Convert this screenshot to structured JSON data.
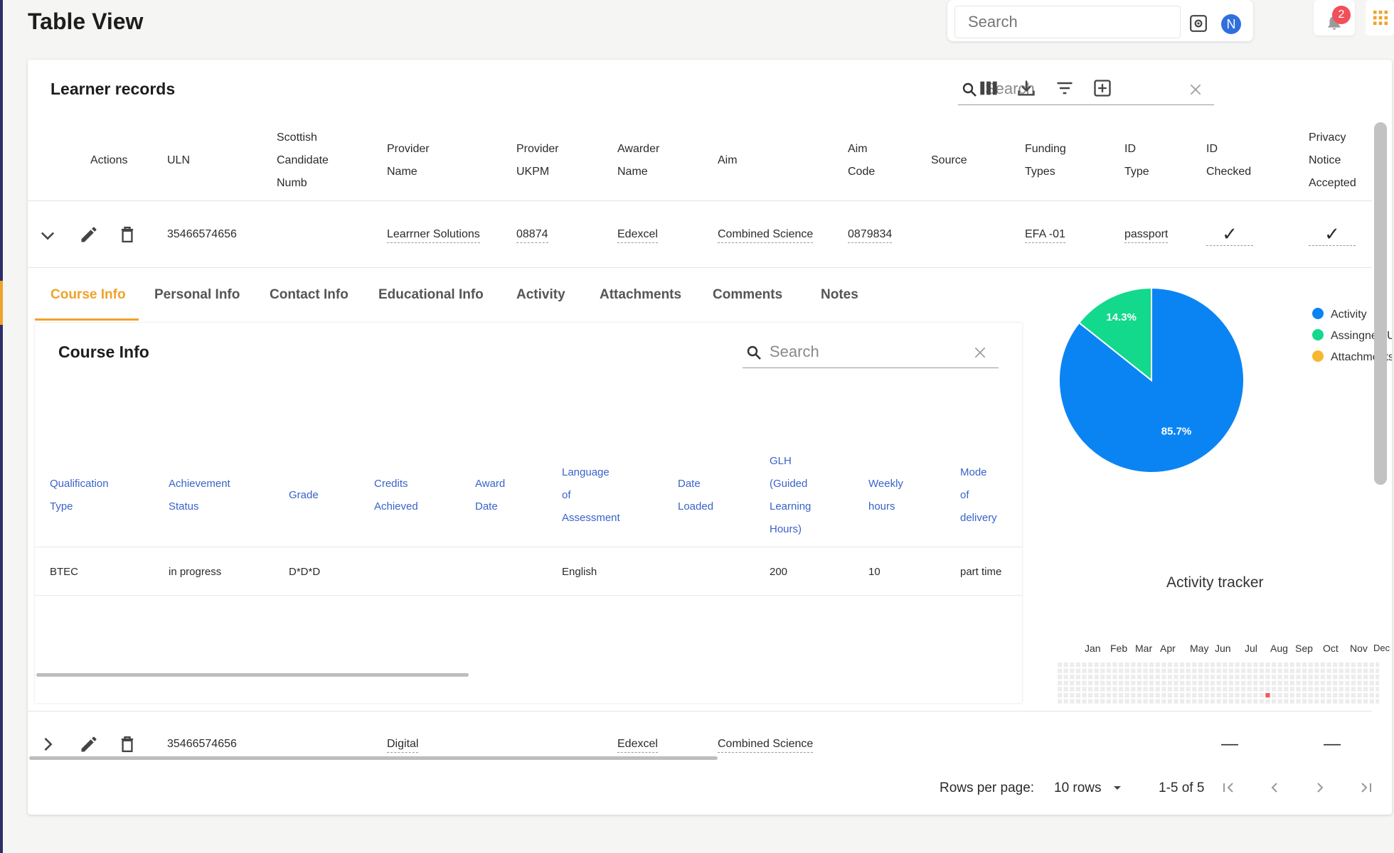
{
  "page": {
    "title": "Table View"
  },
  "topbar": {
    "search_placeholder": "Search",
    "avatar_initial": "N",
    "notification_count": "2"
  },
  "card": {
    "title": "Learner records",
    "search_placeholder": "Search",
    "columns": [
      [
        "Actions"
      ],
      [
        "ULN"
      ],
      [
        "Scottish",
        "Candidate",
        "Numb"
      ],
      [
        "Provider",
        "Name"
      ],
      [
        "Provider",
        "UKPM"
      ],
      [
        "Awarder",
        "Name"
      ],
      [
        "Aim"
      ],
      [
        "Aim",
        "Code"
      ],
      [
        "Source"
      ],
      [
        "Funding",
        "Types"
      ],
      [
        "ID",
        "Type"
      ],
      [
        "ID",
        "Checked"
      ],
      [
        "Privacy",
        "Notice",
        "Accepted"
      ]
    ],
    "rows": [
      {
        "uln": "35466574656",
        "provider_name": "Learrner Solutions",
        "provider_ukpm": "08874",
        "awarder": "Edexcel",
        "aim": "Combined Science",
        "aim_code": "0879834",
        "funding": "EFA -01",
        "id_type": "passport",
        "id_checked": "✓",
        "privacy": "✓"
      },
      {
        "uln": "35466574656",
        "provider_name": "Digital",
        "awarder": "Edexcel",
        "aim": "Combined Science",
        "id_checked": "—",
        "privacy": "—"
      }
    ]
  },
  "tabs": [
    "Course Info",
    "Personal Info",
    "Contact Info",
    "Educational Info",
    "Activity",
    "Attachments",
    "Comments",
    "Notes"
  ],
  "course_info": {
    "title": "Course Info",
    "search_placeholder": "Search",
    "columns": [
      [
        "Qualification",
        "Type"
      ],
      [
        "Achievement",
        "Status"
      ],
      [
        "Grade"
      ],
      [
        "Credits",
        "Achieved"
      ],
      [
        "Award",
        "Date"
      ],
      [
        "Language",
        "of",
        "Assessment"
      ],
      [
        "Date",
        "Loaded"
      ],
      [
        "GLH",
        "(Guided",
        "Learning",
        "Hours)"
      ],
      [
        "Weekly",
        "hours"
      ],
      [
        "Mode",
        "of",
        "delivery"
      ]
    ],
    "row": {
      "qualification": "BTEC",
      "status": "in progress",
      "grade": "D*D*D",
      "language": "English",
      "glh": "200",
      "weekly": "10",
      "mode": "part time"
    }
  },
  "chart_data": {
    "type": "pie",
    "series": [
      {
        "name": "Activity",
        "value": 85.7,
        "label": "85.7%",
        "color": "#0b84f3"
      },
      {
        "name": "Assingned Us",
        "value": 14.3,
        "label": "14.3%",
        "color": "#12d98c"
      },
      {
        "name": "Attachments",
        "value": 0,
        "label": "",
        "color": "#f5b82e"
      }
    ],
    "legend_position": "right"
  },
  "activity_tracker": {
    "title": "Activity tracker",
    "months": [
      "Jan",
      "Feb",
      "Mar",
      "Apr",
      "May",
      "Jun",
      "Jul",
      "Aug",
      "Sep",
      "Oct",
      "Nov",
      "Dec"
    ]
  },
  "pager": {
    "rows_label": "Rows per page:",
    "rows_value": "10 rows",
    "range": "1-5 of 5"
  }
}
